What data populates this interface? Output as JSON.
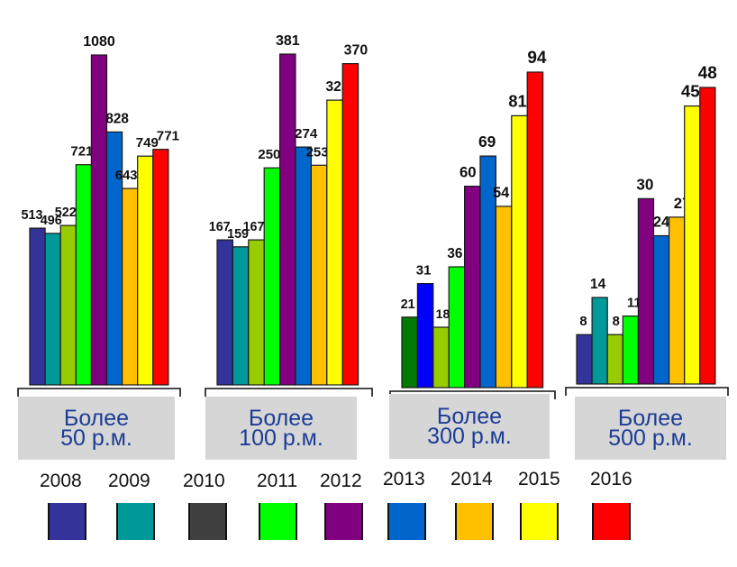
{
  "chart_data": {
    "type": "bar",
    "title": "",
    "xlabel": "",
    "ylabel": "",
    "grid": false,
    "legend_position": "bottom",
    "independent_y_scale_per_group": true,
    "categories": [
      "Более\n50 р.м.",
      "Более\n100 р.м.",
      "Более\n300 р.м.",
      "Более\n500 р.м."
    ],
    "category_lines": [
      [
        "Более",
        "50 р.м."
      ],
      [
        "Более",
        "100 р.м."
      ],
      [
        "Более",
        "300 р.м."
      ],
      [
        "Более",
        "500 р.м."
      ]
    ],
    "series": [
      {
        "name": "2008",
        "color": "#333399",
        "values": [
          513,
          167,
          21,
          8
        ]
      },
      {
        "name": "2009",
        "color": "#009999",
        "values": [
          496,
          159,
          31,
          14
        ]
      },
      {
        "name": "2010",
        "color": "#99CC00",
        "values": [
          522,
          167,
          18,
          8
        ]
      },
      {
        "name": "2011",
        "color": "#00FF00",
        "values": [
          721,
          250,
          36,
          11
        ]
      },
      {
        "name": "2012",
        "color": "#800080",
        "values": [
          1080,
          381,
          60,
          30
        ]
      },
      {
        "name": "2013",
        "color": "#0066CC",
        "values": [
          828,
          274,
          69,
          24
        ]
      },
      {
        "name": "2014",
        "color": "#FFC000",
        "values": [
          643,
          253,
          54,
          27
        ]
      },
      {
        "name": "2015",
        "color": "#FFFF00",
        "values": [
          749,
          328,
          81,
          45
        ]
      },
      {
        "name": "2016",
        "color": "#FF0000",
        "values": [
          771,
          370,
          94,
          48
        ]
      }
    ],
    "bar_color_overrides": {
      "Более 300 р.м.": {
        "2008": "#007A00",
        "2009": "#0000FF"
      }
    },
    "legend": [
      {
        "label": "2008",
        "color": "#333399"
      },
      {
        "label": "2009",
        "color": "#009999"
      },
      {
        "label": "2010",
        "color": "#404040"
      },
      {
        "label": "2011",
        "color": "#00FF00"
      },
      {
        "label": "2012",
        "color": "#800080"
      },
      {
        "label": "2013",
        "color": "#0066CC"
      },
      {
        "label": "2014",
        "color": "#FFC000"
      },
      {
        "label": "2015",
        "color": "#FFFF00"
      },
      {
        "label": "2016",
        "color": "#FF0000"
      }
    ]
  }
}
